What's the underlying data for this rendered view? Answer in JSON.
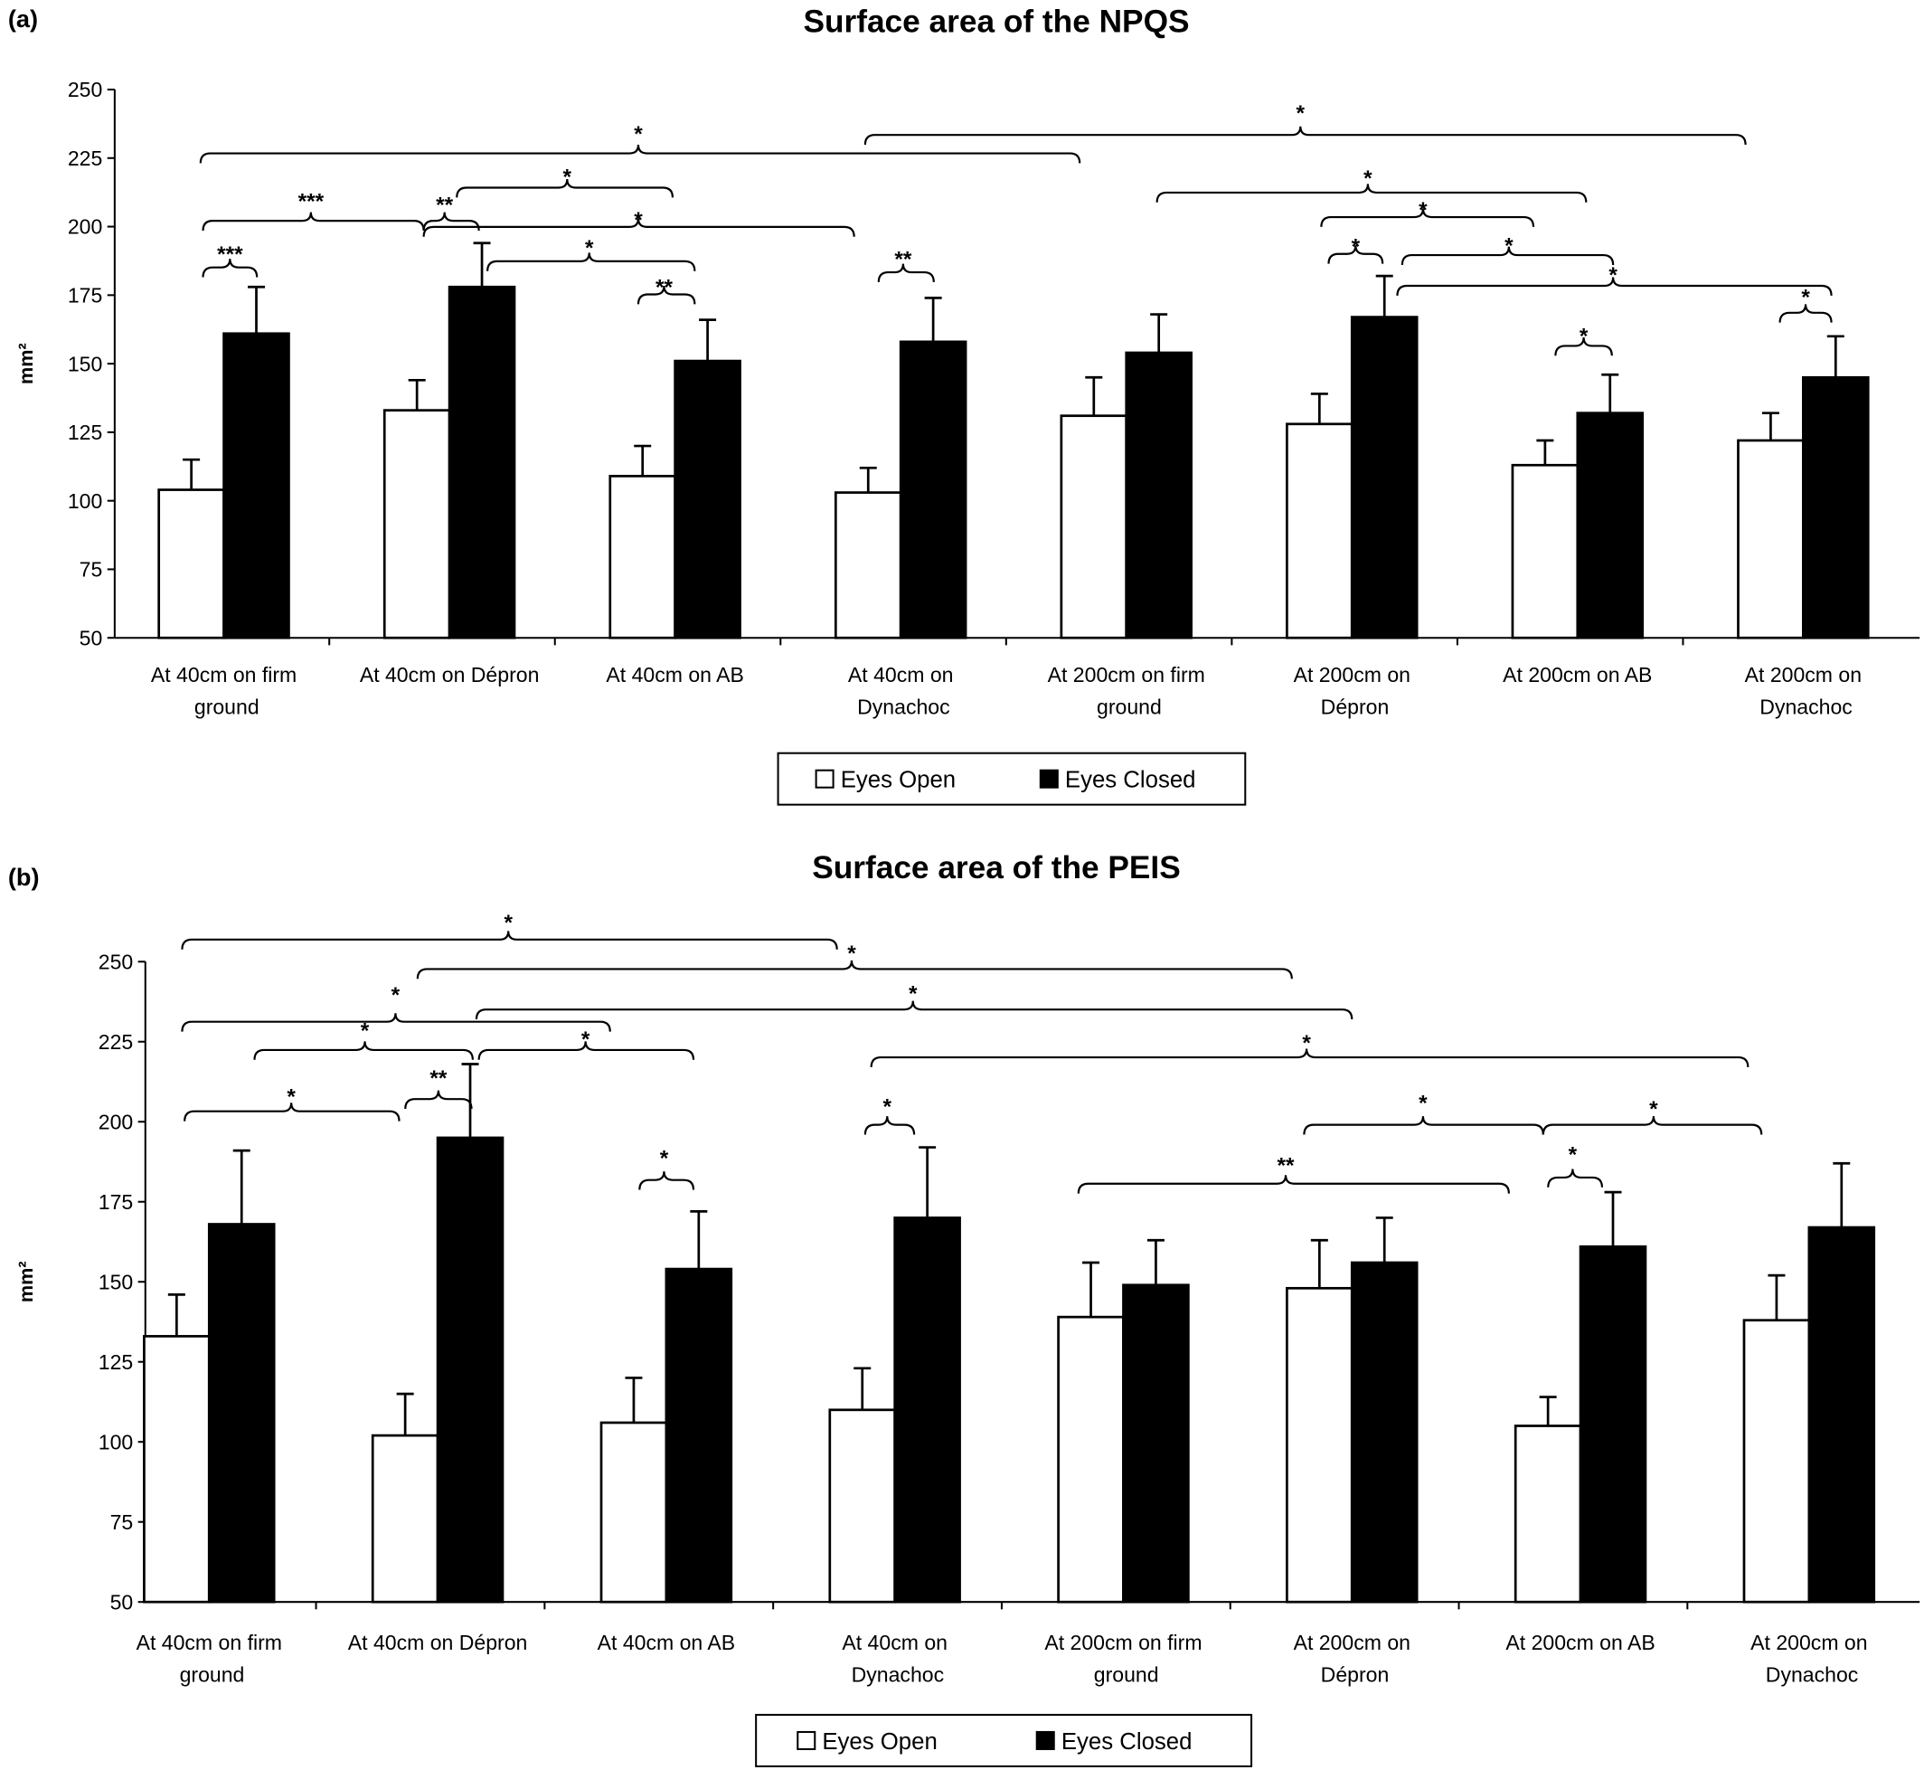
{
  "chart_data": [
    {
      "type": "bar",
      "panel": "(a)",
      "title": "Surface area of the NPQS",
      "ylabel": "mm²",
      "categories": [
        "At 40cm on firm ground",
        "At 40cm on Dépron",
        "At 40cm on AB",
        "At 40cm on Dynachoc",
        "At 200cm on firm ground",
        "At 200cm on Dépron",
        "At 200cm on AB",
        "At 200cm on Dynachoc"
      ],
      "series": [
        {
          "name": "Eyes Open",
          "color": "#ffffff",
          "values": [
            104,
            133,
            109,
            103,
            131,
            128,
            113,
            122
          ],
          "errors": [
            11,
            11,
            11,
            9,
            14,
            11,
            9,
            10
          ]
        },
        {
          "name": "Eyes Closed",
          "color": "#000000",
          "values": [
            161,
            178,
            151,
            158,
            154,
            167,
            132,
            145
          ],
          "errors": [
            17,
            16,
            15,
            16,
            14,
            15,
            14,
            15
          ]
        }
      ],
      "ylim": [
        50,
        250
      ],
      "yticks": [
        50,
        75,
        100,
        125,
        150,
        175,
        200,
        225,
        250
      ],
      "annotations": [
        "***",
        "***",
        "**",
        "*",
        "*",
        "*",
        "**",
        "*",
        "**",
        "*",
        "*",
        "*",
        "*",
        "*",
        "*",
        "*",
        "*"
      ]
    },
    {
      "type": "bar",
      "panel": "(b)",
      "title": "Surface area of the PEIS",
      "ylabel": "mm²",
      "categories": [
        "At 40cm on firm ground",
        "At 40cm on Dépron",
        "At 40cm on AB",
        "At 40cm on Dynachoc",
        "At 200cm on firm ground",
        "At 200cm on Dépron",
        "At 200cm on AB",
        "At 200cm on Dynachoc"
      ],
      "series": [
        {
          "name": "Eyes Open",
          "color": "#ffffff",
          "values": [
            133,
            102,
            106,
            110,
            139,
            148,
            105,
            138
          ],
          "errors": [
            13,
            13,
            14,
            13,
            17,
            15,
            9,
            14
          ]
        },
        {
          "name": "Eyes Closed",
          "color": "#000000",
          "values": [
            168,
            195,
            154,
            170,
            149,
            156,
            161,
            167
          ],
          "errors": [
            23,
            23,
            18,
            22,
            14,
            14,
            17,
            20
          ]
        }
      ],
      "ylim": [
        50,
        250
      ],
      "yticks": [
        50,
        75,
        100,
        125,
        150,
        175,
        200,
        225,
        250
      ],
      "annotations": [
        "*",
        "*",
        "*",
        "*",
        "*",
        "*",
        "*",
        "**",
        "*",
        "*",
        "*",
        "**",
        "*",
        "*",
        "*"
      ]
    }
  ]
}
